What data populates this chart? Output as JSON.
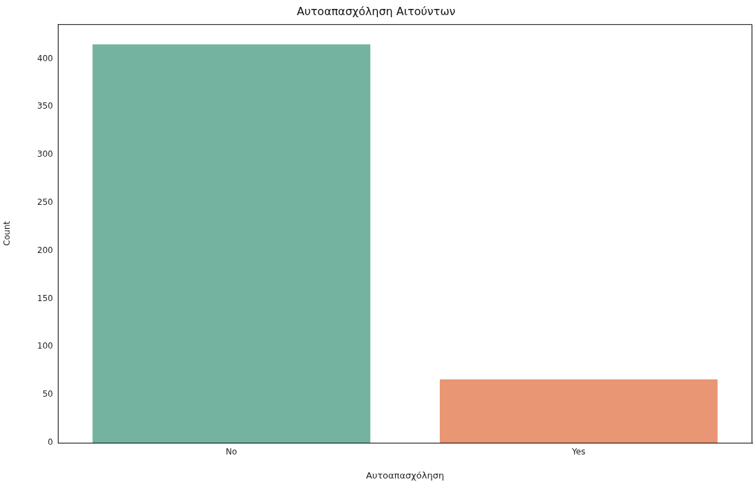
{
  "chart_data": {
    "type": "bar",
    "title": "Αυτοαπασχόληση Αιτούντων",
    "xlabel": "Αυτοαπασχόληση",
    "ylabel": "Count",
    "categories": [
      "No",
      "Yes"
    ],
    "values": [
      415,
      66
    ],
    "colors": [
      "#73b3a0",
      "#e89674"
    ],
    "ylim": [
      0,
      436
    ],
    "yticks": [
      0,
      50,
      100,
      150,
      200,
      250,
      300,
      350,
      400
    ],
    "grid": false,
    "legend": false
  }
}
